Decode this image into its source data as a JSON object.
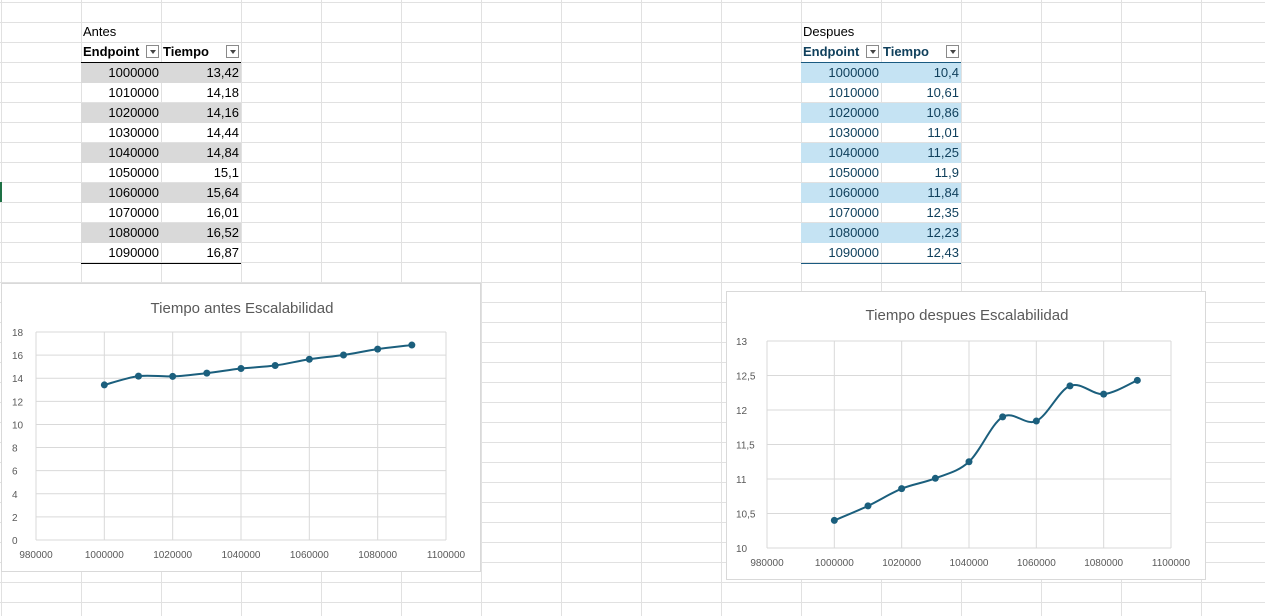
{
  "tables": [
    {
      "caption": "Antes",
      "headers": [
        "Endpoint",
        "Tiempo"
      ],
      "rows": [
        [
          "1000000",
          "13,42"
        ],
        [
          "1010000",
          "14,18"
        ],
        [
          "1020000",
          "14,16"
        ],
        [
          "1030000",
          "14,44"
        ],
        [
          "1040000",
          "14,84"
        ],
        [
          "1050000",
          "15,1"
        ],
        [
          "1060000",
          "15,64"
        ],
        [
          "1070000",
          "16,01"
        ],
        [
          "1080000",
          "16,52"
        ],
        [
          "1090000",
          "16,87"
        ]
      ],
      "style": "grey"
    },
    {
      "caption": "Despues",
      "headers": [
        "Endpoint",
        "Tiempo"
      ],
      "rows": [
        [
          "1000000",
          "10,4"
        ],
        [
          "1010000",
          "10,61"
        ],
        [
          "1020000",
          "10,86"
        ],
        [
          "1030000",
          "11,01"
        ],
        [
          "1040000",
          "11,25"
        ],
        [
          "1050000",
          "11,9"
        ],
        [
          "1060000",
          "11,84"
        ],
        [
          "1070000",
          "12,35"
        ],
        [
          "1080000",
          "12,23"
        ],
        [
          "1090000",
          "12,43"
        ]
      ],
      "style": "blue"
    }
  ],
  "chart_data": [
    {
      "type": "scatter",
      "title": "Tiempo antes Escalabilidad",
      "x": [
        1000000,
        1010000,
        1020000,
        1030000,
        1040000,
        1050000,
        1060000,
        1070000,
        1080000,
        1090000
      ],
      "y": [
        13.42,
        14.18,
        14.16,
        14.44,
        14.84,
        15.1,
        15.64,
        16.01,
        16.52,
        16.87
      ],
      "xlim": [
        980000,
        1100000
      ],
      "xticks": [
        980000,
        1000000,
        1020000,
        1040000,
        1060000,
        1080000,
        1100000
      ],
      "xtick_labels": [
        "980000",
        "1000000",
        "1020000",
        "1040000",
        "1060000",
        "1080000",
        "1100000"
      ],
      "ylim": [
        0,
        18
      ],
      "yticks": [
        0,
        2,
        4,
        6,
        8,
        10,
        12,
        14,
        16,
        18
      ],
      "ytick_labels": [
        "0",
        "2",
        "4",
        "6",
        "8",
        "10",
        "12",
        "14",
        "16",
        "18"
      ],
      "grid": true,
      "smooth": true,
      "color": "#1b5f7d"
    },
    {
      "type": "scatter",
      "title": "Tiempo despues Escalabilidad",
      "x": [
        1000000,
        1010000,
        1020000,
        1030000,
        1040000,
        1050000,
        1060000,
        1070000,
        1080000,
        1090000
      ],
      "y": [
        10.4,
        10.61,
        10.86,
        11.01,
        11.25,
        11.9,
        11.84,
        12.35,
        12.23,
        12.43
      ],
      "xlim": [
        980000,
        1100000
      ],
      "xticks": [
        980000,
        1000000,
        1020000,
        1040000,
        1060000,
        1080000,
        1100000
      ],
      "xtick_labels": [
        "980000",
        "1000000",
        "1020000",
        "1040000",
        "1060000",
        "1080000",
        "1100000"
      ],
      "ylim": [
        10,
        13
      ],
      "yticks": [
        10,
        10.5,
        11,
        11.5,
        12,
        12.5,
        13
      ],
      "ytick_labels": [
        "10",
        "10,5",
        "11",
        "11,5",
        "12",
        "12,5",
        "13"
      ],
      "grid": true,
      "smooth": true,
      "color": "#1b5f7d"
    }
  ]
}
